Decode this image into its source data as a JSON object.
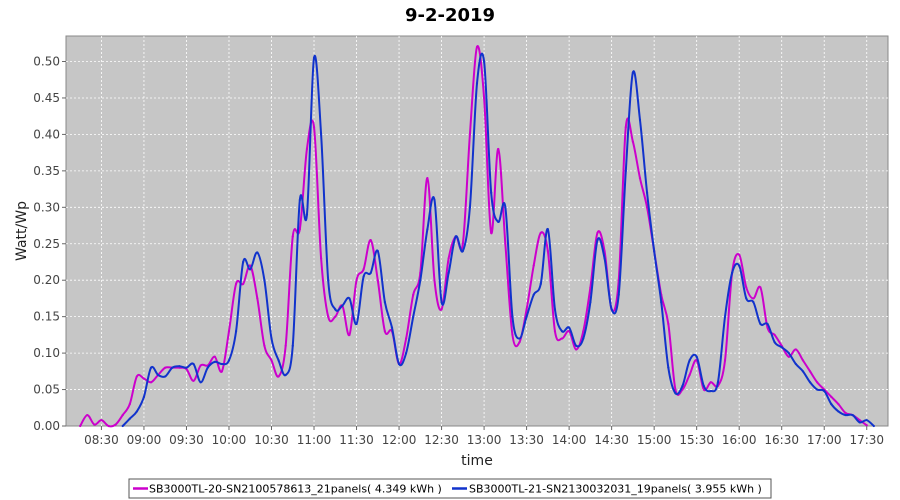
{
  "chart_data": {
    "type": "line",
    "title": "9-2-2019",
    "xlabel": "time",
    "ylabel": "Watt/Wp",
    "x_unit": "time of day (hh:mm)",
    "xlim": [
      "08:05",
      "17:45"
    ],
    "ylim": [
      0,
      0.535
    ],
    "grid": true,
    "legend_placement": "bottom",
    "x_ticks": [
      "08:30",
      "09:00",
      "09:30",
      "10:00",
      "10:30",
      "11:00",
      "11:30",
      "12:00",
      "12:30",
      "13:00",
      "13:30",
      "14:00",
      "14:30",
      "15:00",
      "15:30",
      "16:00",
      "16:30",
      "17:00",
      "17:30"
    ],
    "y_ticks": [
      "0.00",
      "0.05",
      "0.10",
      "0.15",
      "0.20",
      "0.25",
      "0.30",
      "0.35",
      "0.40",
      "0.45",
      "0.50"
    ],
    "series": [
      {
        "name": "SB3000TL-20-SN2100578613_21panels( 4.349 kWh )",
        "color": "#cc00cc",
        "points": [
          [
            "08:15",
            0.0
          ],
          [
            "08:20",
            0.015
          ],
          [
            "08:25",
            0.002
          ],
          [
            "08:30",
            0.008
          ],
          [
            "08:35",
            0.0
          ],
          [
            "08:40",
            0.002
          ],
          [
            "08:45",
            0.015
          ],
          [
            "08:50",
            0.03
          ],
          [
            "08:55",
            0.068
          ],
          [
            "09:00",
            0.065
          ],
          [
            "09:05",
            0.06
          ],
          [
            "09:10",
            0.07
          ],
          [
            "09:15",
            0.08
          ],
          [
            "09:20",
            0.08
          ],
          [
            "09:25",
            0.08
          ],
          [
            "09:30",
            0.078
          ],
          [
            "09:35",
            0.062
          ],
          [
            "09:40",
            0.083
          ],
          [
            "09:45",
            0.083
          ],
          [
            "09:50",
            0.095
          ],
          [
            "09:55",
            0.075
          ],
          [
            "10:00",
            0.13
          ],
          [
            "10:05",
            0.195
          ],
          [
            "10:10",
            0.195
          ],
          [
            "10:15",
            0.22
          ],
          [
            "10:20",
            0.175
          ],
          [
            "10:25",
            0.11
          ],
          [
            "10:30",
            0.09
          ],
          [
            "10:35",
            0.068
          ],
          [
            "10:40",
            0.11
          ],
          [
            "10:45",
            0.26
          ],
          [
            "10:50",
            0.27
          ],
          [
            "10:55",
            0.38
          ],
          [
            "11:00",
            0.41
          ],
          [
            "11:05",
            0.23
          ],
          [
            "11:10",
            0.15
          ],
          [
            "11:15",
            0.15
          ],
          [
            "11:20",
            0.165
          ],
          [
            "11:25",
            0.125
          ],
          [
            "11:30",
            0.2
          ],
          [
            "11:35",
            0.215
          ],
          [
            "11:40",
            0.255
          ],
          [
            "11:45",
            0.2
          ],
          [
            "11:50",
            0.13
          ],
          [
            "11:55",
            0.13
          ],
          [
            "12:00",
            0.085
          ],
          [
            "12:05",
            0.12
          ],
          [
            "12:10",
            0.18
          ],
          [
            "12:15",
            0.21
          ],
          [
            "12:20",
            0.34
          ],
          [
            "12:25",
            0.2
          ],
          [
            "12:30",
            0.16
          ],
          [
            "12:35",
            0.23
          ],
          [
            "12:40",
            0.26
          ],
          [
            "12:45",
            0.25
          ],
          [
            "12:50",
            0.4
          ],
          [
            "12:55",
            0.52
          ],
          [
            "13:00",
            0.45
          ],
          [
            "13:05",
            0.265
          ],
          [
            "13:10",
            0.38
          ],
          [
            "13:15",
            0.25
          ],
          [
            "13:20",
            0.125
          ],
          [
            "13:25",
            0.115
          ],
          [
            "13:30",
            0.16
          ],
          [
            "13:35",
            0.22
          ],
          [
            "13:40",
            0.265
          ],
          [
            "13:45",
            0.24
          ],
          [
            "13:50",
            0.13
          ],
          [
            "13:55",
            0.12
          ],
          [
            "14:00",
            0.13
          ],
          [
            "14:05",
            0.105
          ],
          [
            "14:10",
            0.13
          ],
          [
            "14:15",
            0.19
          ],
          [
            "14:20",
            0.265
          ],
          [
            "14:25",
            0.24
          ],
          [
            "14:30",
            0.16
          ],
          [
            "14:35",
            0.2
          ],
          [
            "14:40",
            0.41
          ],
          [
            "14:45",
            0.39
          ],
          [
            "14:50",
            0.34
          ],
          [
            "14:55",
            0.3
          ],
          [
            "15:00",
            0.24
          ],
          [
            "15:05",
            0.18
          ],
          [
            "15:10",
            0.14
          ],
          [
            "15:15",
            0.05
          ],
          [
            "15:20",
            0.05
          ],
          [
            "15:25",
            0.07
          ],
          [
            "15:30",
            0.09
          ],
          [
            "15:35",
            0.05
          ],
          [
            "15:40",
            0.06
          ],
          [
            "15:45",
            0.055
          ],
          [
            "15:50",
            0.09
          ],
          [
            "15:55",
            0.21
          ],
          [
            "16:00",
            0.235
          ],
          [
            "16:05",
            0.19
          ],
          [
            "16:10",
            0.175
          ],
          [
            "16:15",
            0.19
          ],
          [
            "16:20",
            0.135
          ],
          [
            "16:25",
            0.125
          ],
          [
            "16:30",
            0.11
          ],
          [
            "16:35",
            0.095
          ],
          [
            "16:40",
            0.105
          ],
          [
            "16:45",
            0.09
          ],
          [
            "16:50",
            0.075
          ],
          [
            "16:55",
            0.06
          ],
          [
            "17:00",
            0.05
          ],
          [
            "17:05",
            0.04
          ],
          [
            "17:10",
            0.03
          ],
          [
            "17:15",
            0.018
          ],
          [
            "17:20",
            0.015
          ],
          [
            "17:25",
            0.008
          ],
          [
            "17:30",
            0.001
          ]
        ]
      },
      {
        "name": "SB3000TL-21-SN2130032031_19panels( 3.955 kWh )",
        "color": "#1133cc",
        "points": [
          [
            "08:45",
            0.0
          ],
          [
            "08:50",
            0.01
          ],
          [
            "08:55",
            0.02
          ],
          [
            "09:00",
            0.04
          ],
          [
            "09:05",
            0.08
          ],
          [
            "09:10",
            0.07
          ],
          [
            "09:15",
            0.068
          ],
          [
            "09:20",
            0.08
          ],
          [
            "09:25",
            0.082
          ],
          [
            "09:30",
            0.08
          ],
          [
            "09:35",
            0.085
          ],
          [
            "09:40",
            0.06
          ],
          [
            "09:45",
            0.08
          ],
          [
            "09:50",
            0.088
          ],
          [
            "09:55",
            0.085
          ],
          [
            "10:00",
            0.09
          ],
          [
            "10:05",
            0.13
          ],
          [
            "10:10",
            0.225
          ],
          [
            "10:15",
            0.215
          ],
          [
            "10:20",
            0.238
          ],
          [
            "10:25",
            0.2
          ],
          [
            "10:30",
            0.12
          ],
          [
            "10:35",
            0.09
          ],
          [
            "10:40",
            0.07
          ],
          [
            "10:45",
            0.11
          ],
          [
            "10:50",
            0.31
          ],
          [
            "10:55",
            0.29
          ],
          [
            "11:00",
            0.505
          ],
          [
            "11:05",
            0.4
          ],
          [
            "11:10",
            0.2
          ],
          [
            "11:15",
            0.16
          ],
          [
            "11:20",
            0.165
          ],
          [
            "11:25",
            0.175
          ],
          [
            "11:30",
            0.14
          ],
          [
            "11:35",
            0.205
          ],
          [
            "11:40",
            0.21
          ],
          [
            "11:45",
            0.24
          ],
          [
            "11:50",
            0.17
          ],
          [
            "11:55",
            0.135
          ],
          [
            "12:00",
            0.085
          ],
          [
            "12:05",
            0.1
          ],
          [
            "12:10",
            0.15
          ],
          [
            "12:15",
            0.2
          ],
          [
            "12:20",
            0.27
          ],
          [
            "12:25",
            0.31
          ],
          [
            "12:30",
            0.17
          ],
          [
            "12:35",
            0.21
          ],
          [
            "12:40",
            0.26
          ],
          [
            "12:45",
            0.24
          ],
          [
            "12:50",
            0.3
          ],
          [
            "12:55",
            0.47
          ],
          [
            "13:00",
            0.5
          ],
          [
            "13:05",
            0.32
          ],
          [
            "13:10",
            0.28
          ],
          [
            "13:15",
            0.3
          ],
          [
            "13:20",
            0.15
          ],
          [
            "13:25",
            0.12
          ],
          [
            "13:30",
            0.15
          ],
          [
            "13:35",
            0.18
          ],
          [
            "13:40",
            0.195
          ],
          [
            "13:45",
            0.27
          ],
          [
            "13:50",
            0.16
          ],
          [
            "13:55",
            0.13
          ],
          [
            "14:00",
            0.135
          ],
          [
            "14:05",
            0.11
          ],
          [
            "14:10",
            0.12
          ],
          [
            "14:15",
            0.17
          ],
          [
            "14:20",
            0.255
          ],
          [
            "14:25",
            0.23
          ],
          [
            "14:30",
            0.16
          ],
          [
            "14:35",
            0.18
          ],
          [
            "14:40",
            0.35
          ],
          [
            "14:45",
            0.485
          ],
          [
            "14:50",
            0.42
          ],
          [
            "14:55",
            0.32
          ],
          [
            "15:00",
            0.24
          ],
          [
            "15:05",
            0.17
          ],
          [
            "15:10",
            0.08
          ],
          [
            "15:15",
            0.045
          ],
          [
            "15:20",
            0.055
          ],
          [
            "15:25",
            0.09
          ],
          [
            "15:30",
            0.095
          ],
          [
            "15:35",
            0.055
          ],
          [
            "15:40",
            0.048
          ],
          [
            "15:45",
            0.06
          ],
          [
            "15:50",
            0.15
          ],
          [
            "15:55",
            0.21
          ],
          [
            "16:00",
            0.22
          ],
          [
            "16:05",
            0.175
          ],
          [
            "16:10",
            0.17
          ],
          [
            "16:15",
            0.14
          ],
          [
            "16:20",
            0.14
          ],
          [
            "16:25",
            0.115
          ],
          [
            "16:30",
            0.108
          ],
          [
            "16:35",
            0.1
          ],
          [
            "16:40",
            0.085
          ],
          [
            "16:45",
            0.075
          ],
          [
            "16:50",
            0.06
          ],
          [
            "16:55",
            0.05
          ],
          [
            "17:00",
            0.048
          ],
          [
            "17:05",
            0.03
          ],
          [
            "17:10",
            0.02
          ],
          [
            "17:15",
            0.015
          ],
          [
            "17:20",
            0.015
          ],
          [
            "17:25",
            0.005
          ],
          [
            "17:30",
            0.008
          ],
          [
            "17:35",
            0.0
          ]
        ]
      }
    ]
  }
}
